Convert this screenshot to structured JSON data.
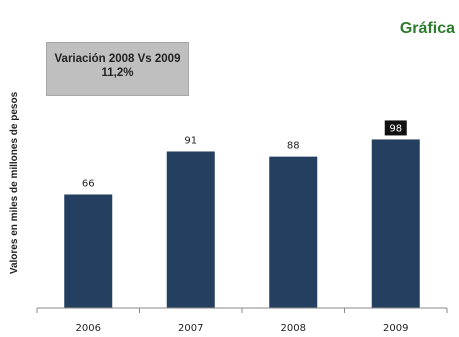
{
  "header": {
    "title": "Gráfica"
  },
  "summary_box": {
    "line1": "Variación 2008 Vs 2009",
    "line2": "11,2%"
  },
  "chart_data": {
    "type": "bar",
    "categories": [
      "2006",
      "2007",
      "2008",
      "2009"
    ],
    "values": [
      66,
      91,
      88,
      98
    ],
    "data_labels": [
      "66",
      "91",
      "88",
      "98"
    ],
    "highlighted_label_index": 3,
    "ylabel": "Valores en miles de millones de pesos",
    "ylim": [
      0,
      110
    ],
    "grid": false,
    "colors": {
      "bar": "#243f60",
      "highlight_label_bg": "#111111"
    }
  }
}
